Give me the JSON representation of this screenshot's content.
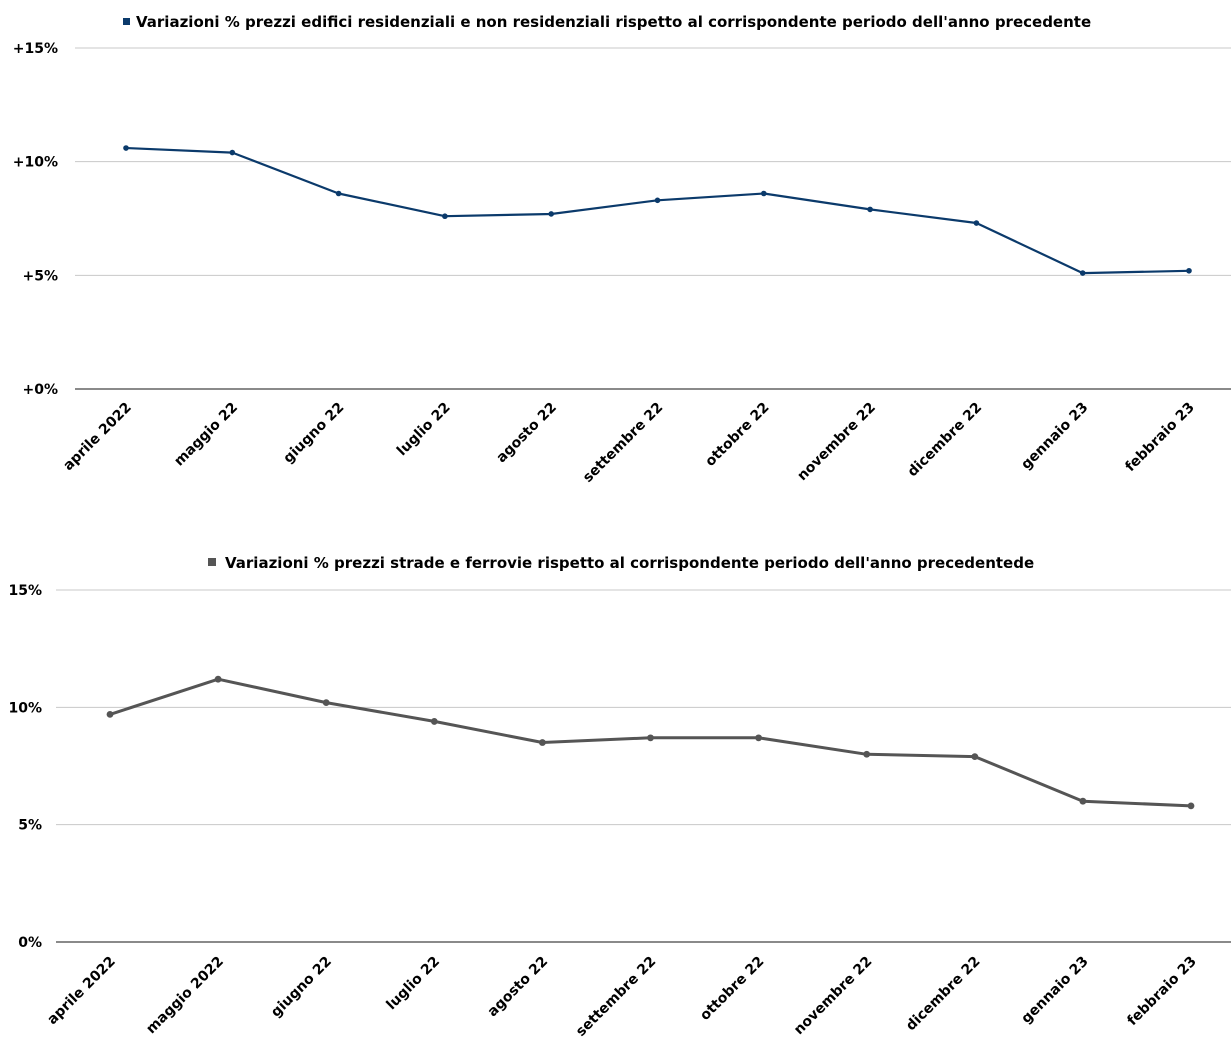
{
  "chart_data": [
    {
      "type": "line",
      "title": "Variazioni % prezzi edifici residenziali e non residenziali rispetto al corrispondente periodo dell'anno precedente",
      "categories": [
        "aprile 2022",
        "maggio 22",
        "giugno 22",
        "luglio 22",
        "agosto 22",
        "settembre 22",
        "ottobre 22",
        "novembre 22",
        "dicembre 22",
        "gennaio 23",
        "febbraio 23"
      ],
      "series": [
        {
          "name": "Variazioni % prezzi edifici residenziali e non residenziali rispetto al corrispondente periodo dell'anno precedente",
          "values": [
            10.6,
            10.4,
            8.6,
            7.6,
            7.7,
            8.3,
            8.6,
            7.9,
            7.3,
            5.1,
            5.2
          ],
          "color": "#0b3a6b"
        }
      ],
      "yticks": [
        {
          "value": 0,
          "label": "+0%"
        },
        {
          "value": 5,
          "label": "+5%"
        },
        {
          "value": 10,
          "label": "+10%"
        },
        {
          "value": 15,
          "label": "+15%"
        }
      ],
      "ylim": [
        0,
        15
      ],
      "xlabel": "",
      "ylabel": "",
      "grid": true,
      "legend": "top-center"
    },
    {
      "type": "line",
      "title": "Variazioni % prezzi strade e ferrovie rispetto al corrispondente periodo dell'anno precedentede",
      "categories": [
        "aprile 2022",
        "maggio 2022",
        "giugno 22",
        "luglio 22",
        "agosto 22",
        "settembre 22",
        "ottobre 22",
        "novembre 22",
        "dicembre 22",
        "gennaio 23",
        "febbraio 23"
      ],
      "series": [
        {
          "name": "Variazioni % prezzi strade e ferrovie rispetto al corrispondente periodo dell'anno precedentede",
          "values": [
            9.7,
            11.2,
            10.2,
            9.4,
            8.5,
            8.7,
            8.7,
            8.0,
            7.9,
            6.0,
            5.8
          ],
          "color": "#555555"
        }
      ],
      "yticks": [
        {
          "value": 0,
          "label": "0%"
        },
        {
          "value": 5,
          "label": "5%"
        },
        {
          "value": 10,
          "label": "10%"
        },
        {
          "value": 15,
          "label": "15%"
        }
      ],
      "ylim": [
        0,
        15
      ],
      "xlabel": "",
      "ylabel": "",
      "grid": true,
      "legend": "top-center"
    }
  ]
}
